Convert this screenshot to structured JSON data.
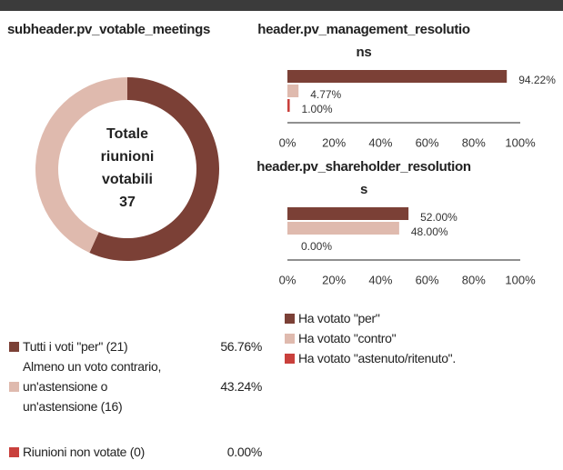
{
  "chart_data": [
    {
      "type": "pie",
      "title": "subheader.pv_votable_meetings",
      "categories": [
        "Tutti i voti \"per\" (21)",
        "Almeno un voto contrario, un'astensione o un'astensione (16)",
        "Riunioni non votate (0)"
      ],
      "values": [
        56.76,
        43.24,
        0
      ],
      "value_labels": [
        "56.76%",
        "43.24%",
        "0.00%"
      ],
      "colors": [
        "#7b4036",
        "#dfbaae",
        "#c9403c"
      ],
      "center_label": "Totale riunioni votabili",
      "total": 37
    },
    {
      "type": "hbar",
      "title": "header.pv_management_resolutions",
      "values": [
        94.22,
        4.77,
        1.0
      ],
      "value_labels": [
        "94.22%",
        "4.77%",
        "1.00%"
      ],
      "colors": [
        "#7b4036",
        "#dfbaae",
        "#c9403c"
      ],
      "xlim": [
        0,
        100
      ],
      "xticks": [
        {
          "value": 0,
          "label": "0%"
        },
        {
          "value": 20,
          "label": "20%"
        },
        {
          "value": 40,
          "label": "40%"
        },
        {
          "value": 60,
          "label": "60%"
        },
        {
          "value": 80,
          "label": "80%"
        },
        {
          "value": 100,
          "label": "100%"
        }
      ]
    },
    {
      "type": "hbar",
      "title": "header.pv_shareholder_resolutions",
      "values": [
        52.0,
        48.0,
        0.0
      ],
      "value_labels": [
        "52.00%",
        "48.00%",
        "0.00%"
      ],
      "colors": [
        "#7b4036",
        "#dfbaae",
        "#c9403c"
      ],
      "xlim": [
        0,
        100
      ],
      "xticks": [
        {
          "value": 0,
          "label": "0%"
        },
        {
          "value": 20,
          "label": "20%"
        },
        {
          "value": 40,
          "label": "40%"
        },
        {
          "value": 60,
          "label": "60%"
        },
        {
          "value": 80,
          "label": "80%"
        },
        {
          "value": 100,
          "label": "100%"
        }
      ]
    }
  ],
  "legend": [
    {
      "name": "Ha votato \"per\"",
      "color": "#7b4036"
    },
    {
      "name": "Ha votato \"contro\"",
      "color": "#dfbaae"
    },
    {
      "name": "Ha votato \"astenuto/ritenuto\".",
      "color": "#c9403c"
    }
  ]
}
